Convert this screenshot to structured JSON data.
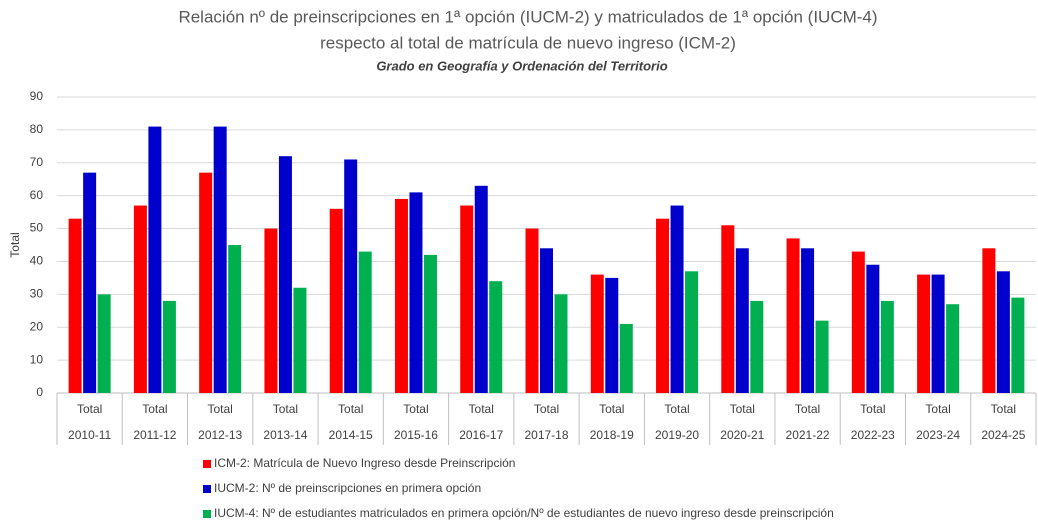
{
  "chart_data": {
    "type": "bar",
    "title": "Relación nº de preinscripciones en 1ª opción (IUCM-2) y matriculados de 1ª opción (IUCM-4)",
    "title_line2": "respecto al total de matrícula de nuevo ingreso (ICM-2)",
    "subtitle": "Grado en Geografía y Ordenación del Territorio",
    "y_label": "Total",
    "categories": [
      "Total",
      "Total",
      "Total",
      "Total",
      "Total",
      "Total",
      "Total",
      "Total",
      "Total",
      "Total",
      "Total",
      "Total",
      "Total",
      "Total",
      "Total"
    ],
    "groups": [
      "2010-11",
      "2011-12",
      "2012-13",
      "2013-14",
      "2014-15",
      "2015-16",
      "2016-17",
      "2017-18",
      "2018-19",
      "2019-20",
      "2020-21",
      "2021-22",
      "2022-23",
      "2023-24",
      "2024-25"
    ],
    "series": [
      {
        "name": "ICM-2: Matrícula de Nuevo Ingreso desde Preinscripción",
        "color": "#ff0000",
        "values": [
          53,
          57,
          67,
          50,
          56,
          59,
          57,
          50,
          36,
          53,
          51,
          47,
          43,
          36,
          44
        ]
      },
      {
        "name": "IUCM-2: Nº de preinscripciones en primera opción",
        "color": "#0000cc",
        "values": [
          67,
          81,
          81,
          72,
          71,
          61,
          63,
          44,
          35,
          57,
          44,
          44,
          39,
          36,
          37
        ]
      },
      {
        "name": "IUCM-4: Nº de estudiantes matriculados en primera opción/Nº de estudiantes de nuevo ingreso desde preinscripción",
        "color": "#00b050",
        "values": [
          30,
          28,
          45,
          32,
          43,
          42,
          34,
          30,
          21,
          37,
          28,
          22,
          28,
          27,
          29
        ]
      }
    ],
    "ylim": [
      0,
      90
    ],
    "yticks": [
      0,
      10,
      20,
      30,
      40,
      50,
      60,
      70,
      80,
      90
    ],
    "grid": true,
    "legend": "bottom"
  }
}
